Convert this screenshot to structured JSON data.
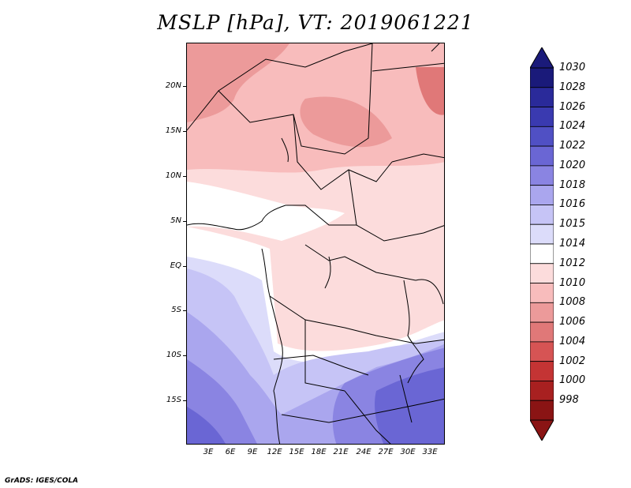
{
  "title": "MSLP [hPa], VT: 2019061221",
  "credit": "GrADS: IGES/COLA",
  "lat_labels": [
    "20N",
    "15N",
    "10N",
    "5N",
    "EQ",
    "5S",
    "10S",
    "15S"
  ],
  "lon_labels": [
    "3E",
    "6E",
    "9E",
    "12E",
    "15E",
    "18E",
    "21E",
    "24E",
    "27E",
    "30E",
    "33E"
  ],
  "colorbar": {
    "labels": [
      "1030",
      "1028",
      "1026",
      "1024",
      "1022",
      "1020",
      "1018",
      "1016",
      "1015",
      "1014",
      "1012",
      "1010",
      "1008",
      "1006",
      "1004",
      "1002",
      "1000",
      "998"
    ],
    "colors": [
      "#1a1a7a",
      "#2a2a9a",
      "#3a3ab0",
      "#5050c4",
      "#6a66d4",
      "#8a84e2",
      "#aaa6ee",
      "#c6c4f6",
      "#dcdcfa",
      "#ffffff",
      "#fcdcdc",
      "#f8bcbc",
      "#ec9a9a",
      "#e07878",
      "#d65454",
      "#c43434",
      "#a82020",
      "#8a1414"
    ],
    "unit": "hPa"
  }
}
